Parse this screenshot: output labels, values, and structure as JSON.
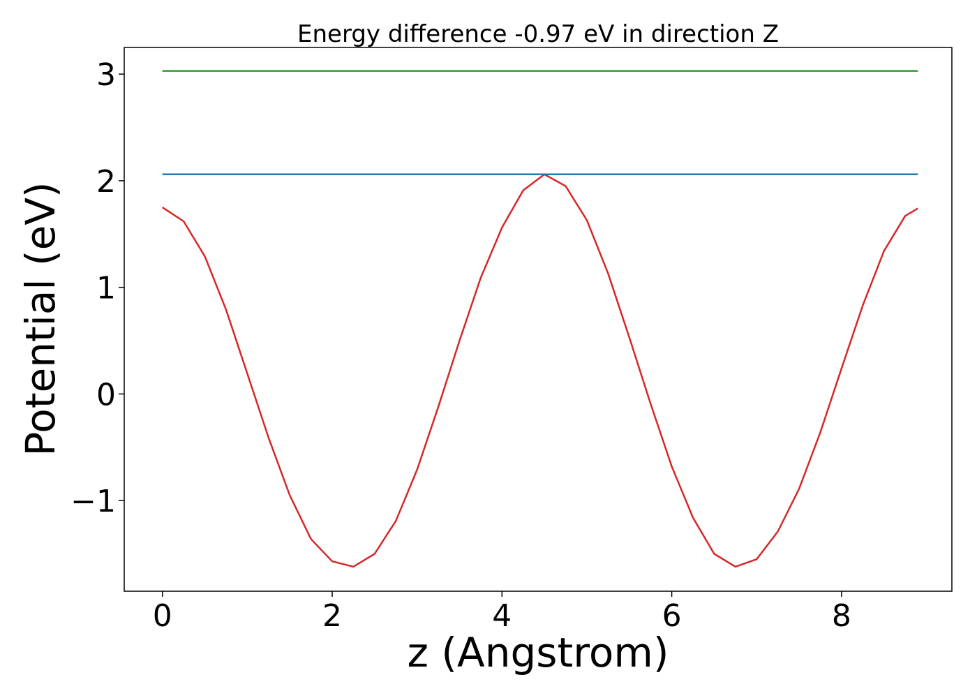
{
  "chart_data": {
    "type": "line",
    "title": "Energy difference -0.97 eV in direction Z",
    "xlabel": "z (Angstrom)",
    "ylabel": "Potential (eV)",
    "xlim": [
      -0.45,
      9.3
    ],
    "ylim": [
      -1.85,
      3.25
    ],
    "xticks": [
      0,
      2,
      4,
      6,
      8
    ],
    "xtick_labels": [
      "0",
      "2",
      "4",
      "6",
      "8"
    ],
    "yticks": [
      -1,
      0,
      1,
      2,
      3
    ],
    "ytick_labels": [
      "−1",
      "0",
      "1",
      "2",
      "3"
    ],
    "grid": false,
    "legend": "none",
    "series": [
      {
        "color": "#d62728",
        "x": [
          0,
          0.25,
          0.5,
          0.75,
          1.0,
          1.25,
          1.5,
          1.75,
          2.0,
          2.25,
          2.5,
          2.75,
          3.0,
          3.25,
          3.5,
          3.75,
          4.0,
          4.25,
          4.5,
          4.75,
          5.0,
          5.25,
          5.5,
          5.75,
          6.0,
          6.25,
          6.5,
          6.75,
          7.0,
          7.25,
          7.5,
          7.75,
          8.0,
          8.25,
          8.5,
          8.75,
          8.9
        ],
        "y": [
          1.75,
          1.62,
          1.29,
          0.79,
          0.19,
          -0.41,
          -0.95,
          -1.36,
          -1.57,
          -1.62,
          -1.5,
          -1.19,
          -0.71,
          -0.12,
          0.5,
          1.09,
          1.56,
          1.91,
          2.06,
          1.95,
          1.63,
          1.13,
          0.53,
          -0.09,
          -0.68,
          -1.16,
          -1.5,
          -1.62,
          -1.55,
          -1.29,
          -0.89,
          -0.36,
          0.24,
          0.83,
          1.34,
          1.67,
          1.74
        ]
      },
      {
        "color": "#1f77b4",
        "x": [
          0,
          8.9
        ],
        "y": [
          2.06,
          2.06
        ]
      },
      {
        "color": "#2ca02c",
        "x": [
          0,
          8.9
        ],
        "y": [
          3.03,
          3.03
        ]
      }
    ]
  }
}
